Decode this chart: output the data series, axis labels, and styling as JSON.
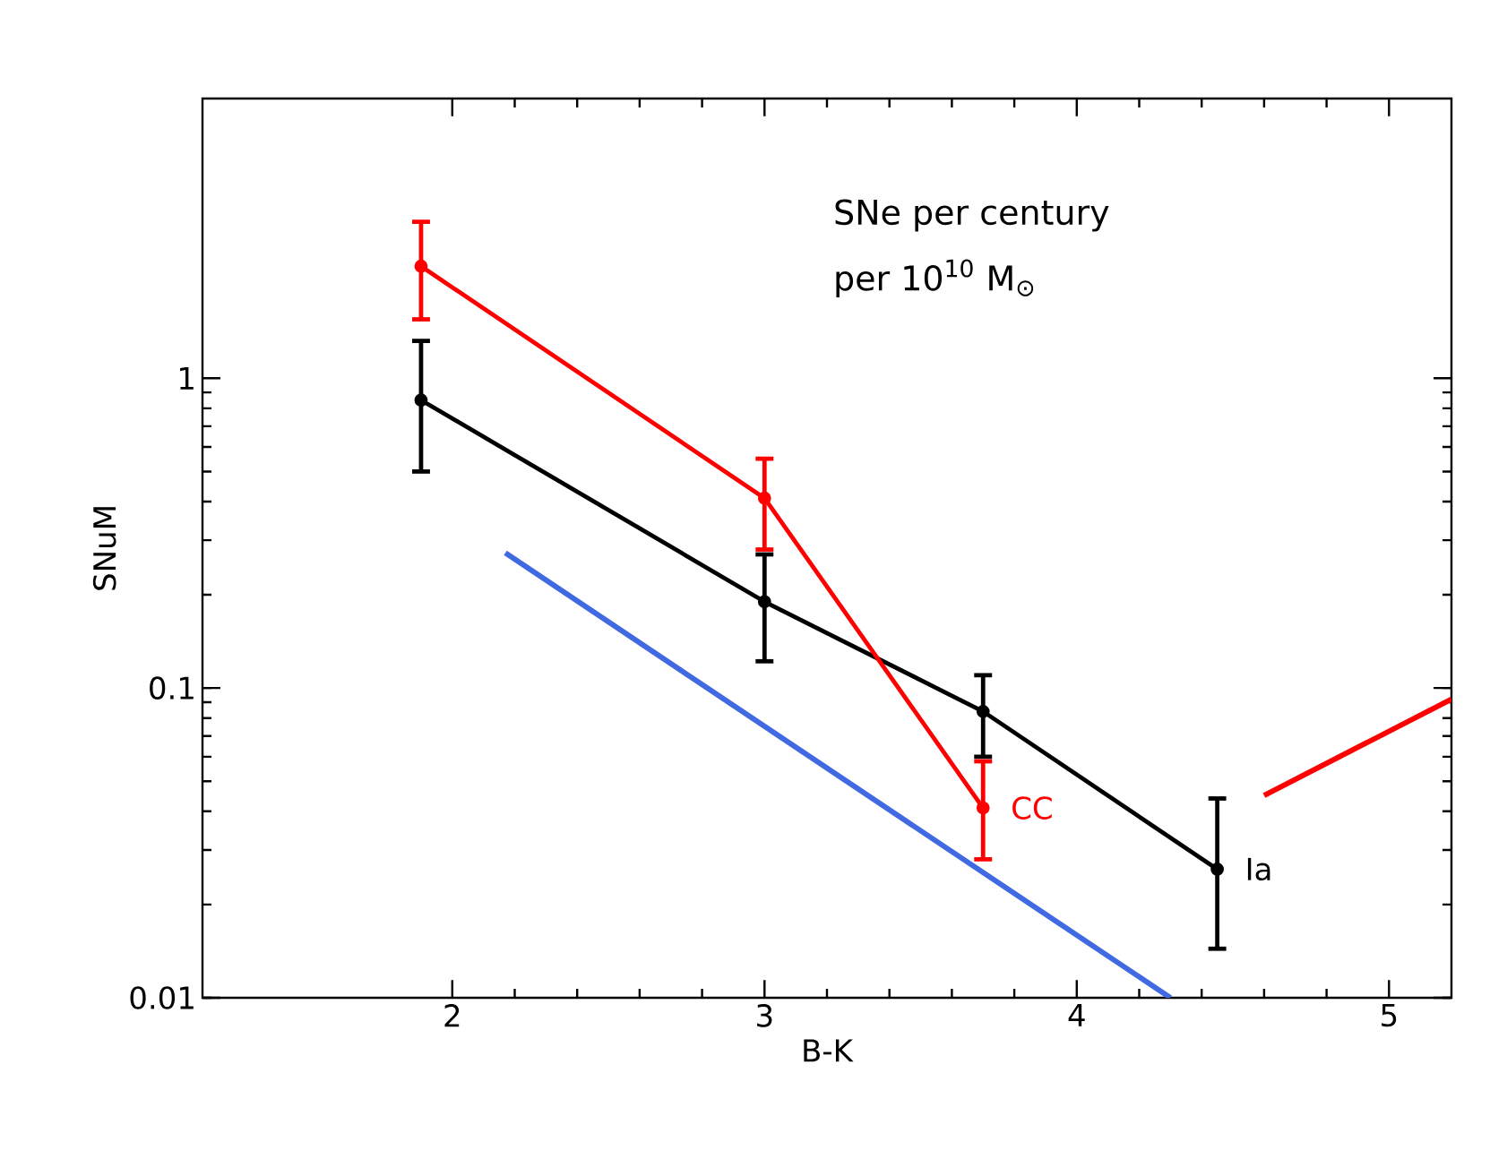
{
  "chart_data": {
    "type": "line",
    "xlabel": "B-K",
    "ylabel": "SNuM",
    "log": "y",
    "xlim": [
      1.2,
      5.2
    ],
    "ylim": [
      0.01,
      8
    ],
    "xticks": [
      2,
      3,
      4,
      5
    ],
    "yticks": [
      0.01,
      0.1,
      1
    ],
    "marker": "circle",
    "annotations": [
      "SNe per century",
      "per 10$^{10}$ M$_{⊙}$"
    ],
    "series": [
      {
        "name": "Ia",
        "color": "#000000",
        "x": [
          1.9,
          3.0,
          3.7,
          4.45
        ],
        "values": [
          0.85,
          0.19,
          0.084,
          0.026
        ],
        "errors": [
          [
            0.5,
            1.32
          ],
          [
            0.122,
            0.27
          ],
          [
            0.06,
            0.11
          ],
          [
            0.0144,
            0.044
          ]
        ]
      },
      {
        "name": "CC",
        "color": "#ff0000",
        "x": [
          1.9,
          3.0,
          3.7
        ],
        "values": [
          2.3,
          0.41,
          0.041
        ],
        "errors": [
          [
            1.55,
            3.2
          ],
          [
            0.28,
            0.55
          ],
          [
            0.028,
            0.058
          ]
        ]
      },
      {
        "color": "#4169e1",
        "x": [
          2.17,
          4.3
        ],
        "values": [
          0.273,
          0.01
        ],
        "marker": "none"
      },
      {
        "color": "#ff0000",
        "x": [
          4.6,
          5.2
        ],
        "values": [
          0.045,
          0.092
        ],
        "marker": "none"
      }
    ]
  }
}
